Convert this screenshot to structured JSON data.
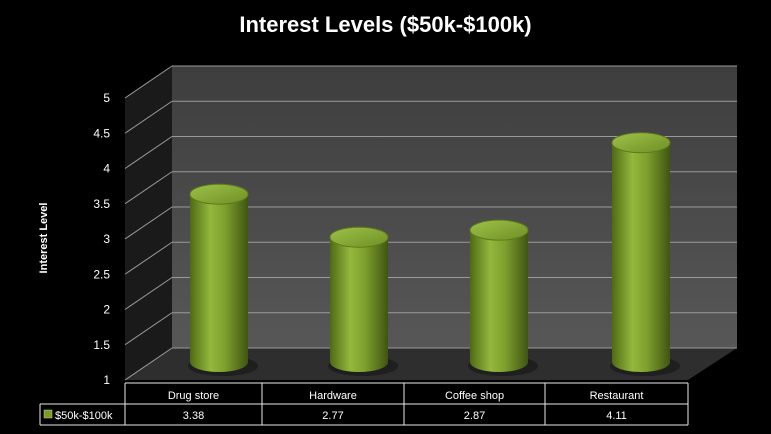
{
  "chart_data": {
    "type": "bar",
    "title": "Interest Levels ($50k-$100k)",
    "xlabel": "",
    "ylabel": "Interest Level",
    "ylim": [
      1,
      5
    ],
    "yticks": [
      "1",
      "1.5",
      "2",
      "2.5",
      "3",
      "3.5",
      "4",
      "4.5",
      "5"
    ],
    "categories": [
      "Drug store",
      "Hardware",
      "Coffee shop",
      "Restaurant"
    ],
    "series": [
      {
        "name": "$50k-$100k",
        "values": [
          3.38,
          2.77,
          2.87,
          4.11
        ],
        "color": "#7a9a2c"
      }
    ],
    "data_table_values": [
      "3.38",
      "2.77",
      "2.87",
      "4.11"
    ],
    "grid": true,
    "legend": "data-table",
    "colors": {
      "background": "#000000",
      "wall": "#4d4d4d",
      "floor": "#3a3a3a",
      "bar": "#7a9a2c"
    }
  }
}
